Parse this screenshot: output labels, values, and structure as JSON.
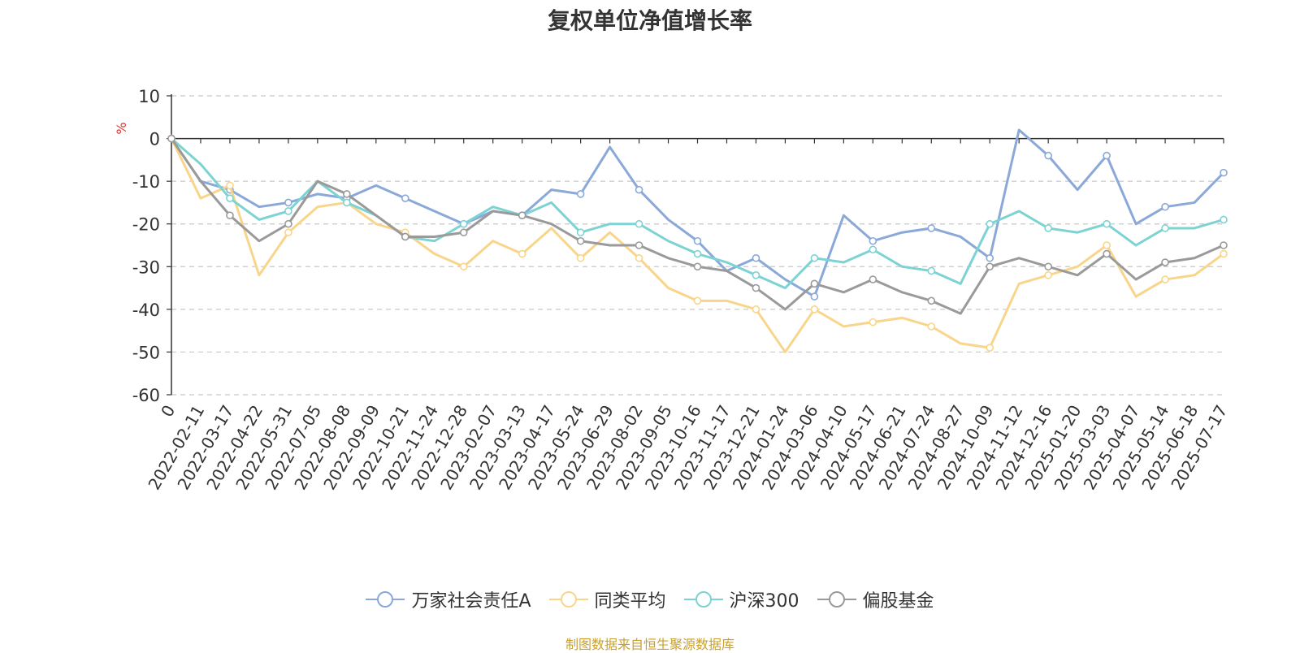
{
  "chart_data": {
    "type": "line",
    "title": "复权单位净值增长率",
    "ylabel": "%",
    "ylim": [
      -60,
      10
    ],
    "yticks": [
      10,
      0,
      -10,
      -20,
      -30,
      -40,
      -50,
      -60
    ],
    "xlabels": [
      "0",
      "2022-02-11",
      "2022-03-17",
      "2022-04-22",
      "2022-05-31",
      "2022-07-05",
      "2022-08-08",
      "2022-09-09",
      "2022-10-21",
      "2022-11-24",
      "2022-12-28",
      "2023-02-07",
      "2023-03-13",
      "2023-04-17",
      "2023-05-24",
      "2023-06-29",
      "2023-08-02",
      "2023-09-05",
      "2023-10-16",
      "2023-11-17",
      "2023-12-21",
      "2024-01-24",
      "2024-03-06",
      "2024-04-10",
      "2024-05-17",
      "2024-06-21",
      "2024-07-24",
      "2024-08-27",
      "2024-10-09",
      "2024-11-12",
      "2024-12-16",
      "2025-01-20",
      "2025-03-03",
      "2025-04-07",
      "2025-05-14",
      "2025-06-18",
      "2025-07-17"
    ],
    "grid": "dashed horizontal",
    "legend_position": "bottom",
    "series": [
      {
        "name": "万家社会责任A",
        "color": "#8aa8d8",
        "values": [
          0,
          -10,
          -12,
          -16,
          -15,
          -13,
          -14,
          -11,
          -14,
          -17,
          -20,
          -17,
          -18,
          -12,
          -13,
          -2,
          -12,
          -19,
          -24,
          -31,
          -28,
          -33,
          -37,
          -18,
          -24,
          -22,
          -21,
          -23,
          -28,
          2,
          -4,
          -12,
          -4,
          -20,
          -16,
          -15,
          -8
        ]
      },
      {
        "name": "同类平均",
        "color": "#f9d58b",
        "values": [
          0,
          -14,
          -11,
          -32,
          -22,
          -16,
          -15,
          -20,
          -22,
          -27,
          -30,
          -24,
          -27,
          -21,
          -28,
          -22,
          -28,
          -35,
          -38,
          -38,
          -40,
          -50,
          -40,
          -44,
          -43,
          -42,
          -44,
          -48,
          -49,
          -34,
          -32,
          -30,
          -25,
          -37,
          -33,
          -32,
          -27
        ]
      },
      {
        "name": "沪深300",
        "color": "#7dd3d3",
        "values": [
          0,
          -6,
          -14,
          -19,
          -17,
          -10,
          -15,
          -18,
          -23,
          -24,
          -20,
          -16,
          -18,
          -15,
          -22,
          -20,
          -20,
          -24,
          -27,
          -29,
          -32,
          -35,
          -28,
          -29,
          -26,
          -30,
          -31,
          -34,
          -20,
          -17,
          -21,
          -22,
          -20,
          -25,
          -21,
          -21,
          -19
        ]
      },
      {
        "name": "偏股基金",
        "color": "#9a9a9a",
        "values": [
          0,
          -10,
          -18,
          -24,
          -20,
          -10,
          -13,
          -18,
          -23,
          -23,
          -22,
          -17,
          -18,
          -20,
          -24,
          -25,
          -25,
          -28,
          -30,
          -31,
          -35,
          -40,
          -34,
          -36,
          -33,
          -36,
          -38,
          -41,
          -30,
          -28,
          -30,
          -32,
          -27,
          -33,
          -29,
          -28,
          -25
        ]
      }
    ]
  },
  "source_text": "制图数据来自恒生聚源数据库"
}
